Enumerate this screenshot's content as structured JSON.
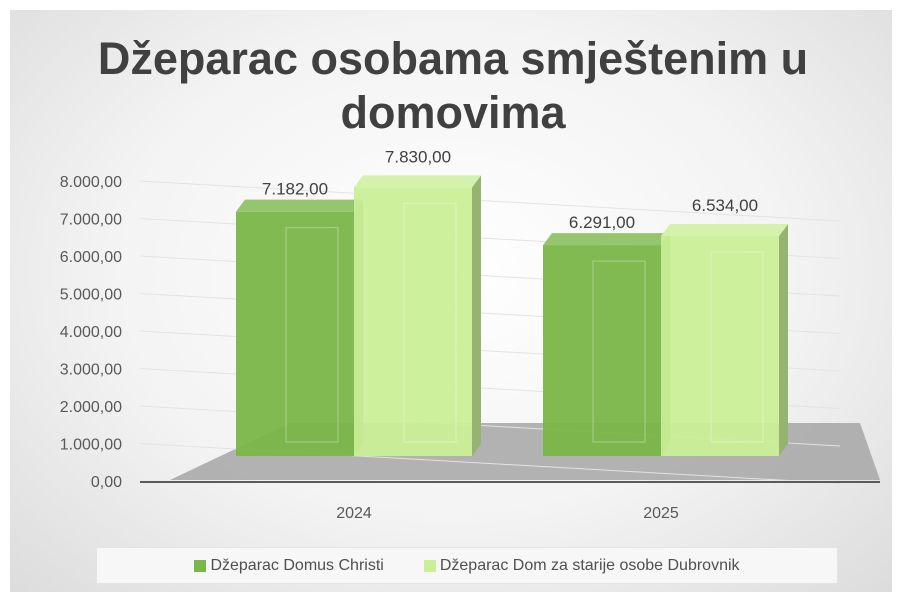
{
  "colors": {
    "series1": "#7ab648",
    "series2": "#c9ef97"
  },
  "chart_data": {
    "type": "bar",
    "title_lines": [
      "Džeparac osobama smještenim u",
      "domovima"
    ],
    "categories": [
      "2024",
      "2025"
    ],
    "series": [
      {
        "name": "Džeparac Domus Christi",
        "values": [
          7182.0,
          6291.0
        ],
        "labels": [
          "7.182,00",
          "6.291,00"
        ]
      },
      {
        "name": "Džeparac Dom za starije osobe Dubrovnik",
        "values": [
          7830.0,
          6534.0
        ],
        "labels": [
          "7.830,00",
          "6.534,00"
        ]
      }
    ],
    "y_ticks": [
      "0,00",
      "1.000,00",
      "2.000,00",
      "3.000,00",
      "4.000,00",
      "5.000,00",
      "6.000,00",
      "7.000,00",
      "8.000,00"
    ],
    "ylim": [
      0,
      8000
    ],
    "grid": true,
    "legend_position": "bottom",
    "three_d": true
  }
}
